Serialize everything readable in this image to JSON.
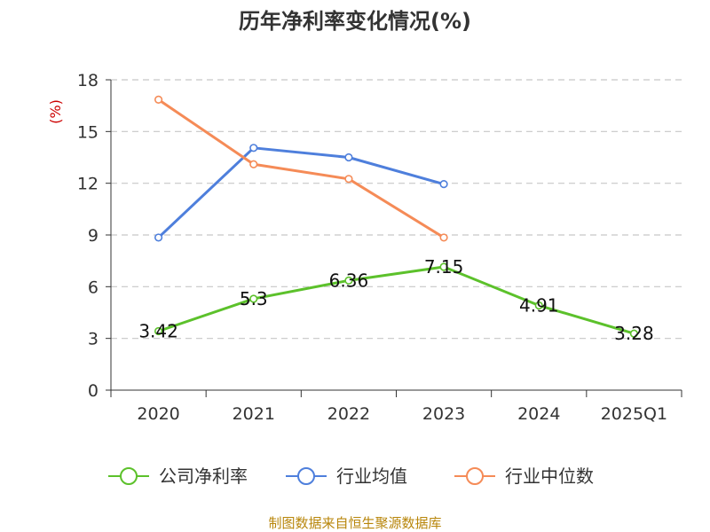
{
  "chart_data": {
    "type": "line",
    "title": "历年净利率变化情况(%)",
    "ylabel": "(%)",
    "xlabel": "",
    "ylim": [
      0,
      18
    ],
    "yticks": [
      0,
      3,
      6,
      9,
      12,
      15,
      18
    ],
    "grid": true,
    "categories": [
      "2020",
      "2021",
      "2022",
      "2023",
      "2024",
      "2025Q1"
    ],
    "series": [
      {
        "name": "公司净利率",
        "color": "#5cc12b",
        "values": [
          3.42,
          5.3,
          6.36,
          7.15,
          4.91,
          3.28
        ],
        "labels": [
          "3.42",
          "5.3",
          "6.36",
          "7.15",
          "4.91",
          "3.28"
        ]
      },
      {
        "name": "行业均值",
        "color": "#4e7fdc",
        "values": [
          8.85,
          14.05,
          13.5,
          11.95,
          null,
          null
        ]
      },
      {
        "name": "行业中位数",
        "color": "#f58b57",
        "values": [
          16.85,
          13.1,
          12.25,
          8.85,
          null,
          null
        ]
      }
    ],
    "source": "制图数据来自恒生聚源数据库"
  }
}
